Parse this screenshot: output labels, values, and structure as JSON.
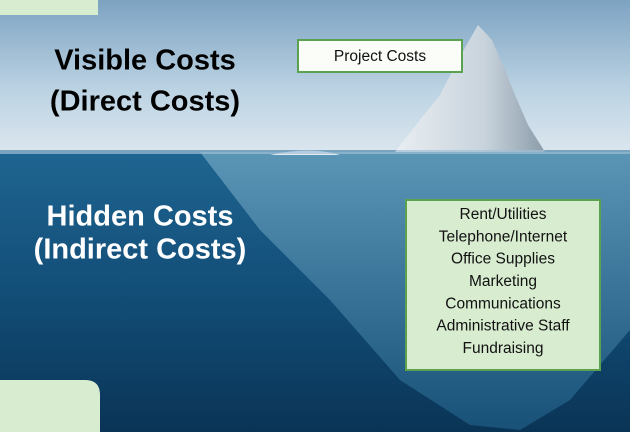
{
  "visible": {
    "title": [
      "Visible Costs",
      "(Direct Costs)"
    ],
    "box": [
      "Project Costs"
    ]
  },
  "hidden": {
    "title": [
      "Hidden Costs",
      "(Indirect Costs)"
    ],
    "box": [
      "Rent/Utilities",
      "Telephone/Internet",
      "Office Supplies",
      "Marketing",
      "Communications",
      "Administrative Staff",
      "Fundraising"
    ]
  }
}
